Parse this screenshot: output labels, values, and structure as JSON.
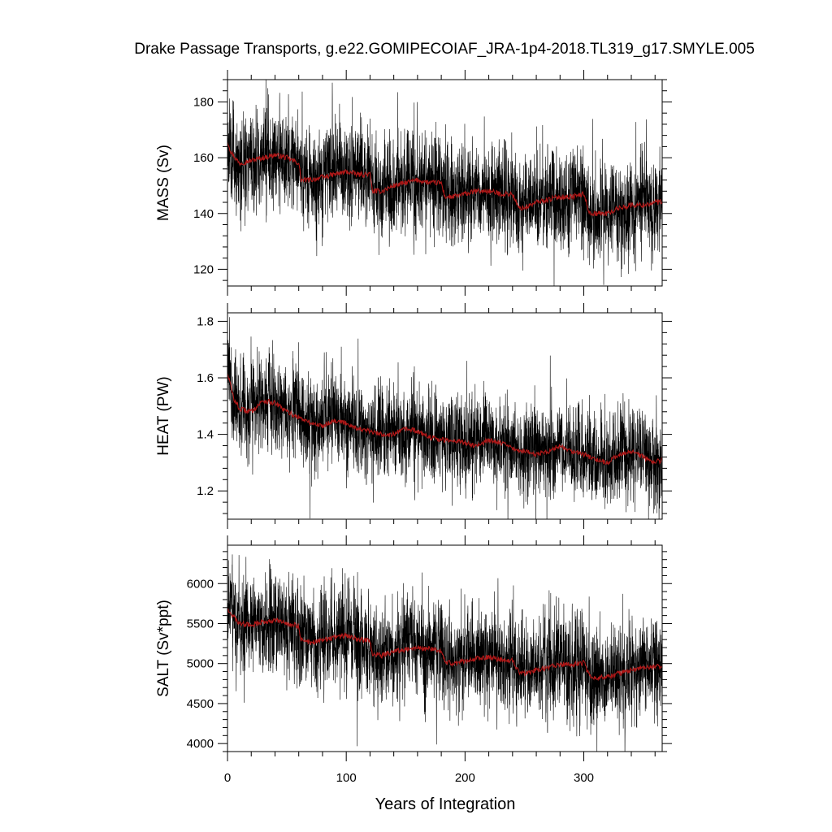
{
  "title": "Drake Passage Transports, g.e22.GOMIPECOIAF_JRA-1p4-2018.TL319_g17.SMYLE.005",
  "xlabel": "Years of Integration",
  "colors": {
    "raw": "#000000",
    "smooth": "#b01818"
  },
  "chart_data": [
    {
      "type": "line",
      "ylabel": "MASS (Sv)",
      "xlim": [
        0,
        366
      ],
      "ylim": [
        114,
        188
      ],
      "yticks": [
        120,
        140,
        160,
        180
      ],
      "ytick_labels": [
        "120",
        "140",
        "160",
        "180"
      ],
      "xticks": [
        0,
        100,
        200,
        300
      ],
      "xtick_labels": [
        "0",
        "100",
        "200",
        "300"
      ],
      "show_xtick_labels": false,
      "series": [
        {
          "role": "monthly",
          "noise": 8,
          "seed": 11,
          "x": [
            0,
            3,
            10,
            20,
            30,
            40,
            50,
            60,
            62,
            70,
            80,
            90,
            100,
            110,
            120,
            122,
            130,
            140,
            150,
            160,
            170,
            180,
            183,
            190,
            200,
            210,
            220,
            230,
            240,
            245,
            250,
            260,
            270,
            280,
            290,
            300,
            305,
            310,
            320,
            330,
            340,
            350,
            360,
            366
          ],
          "y": [
            166,
            162,
            158,
            159,
            160,
            161,
            160,
            158,
            152,
            152,
            153,
            154,
            155,
            154,
            154,
            148,
            148,
            150,
            151,
            152,
            151,
            151,
            146,
            146,
            147,
            148,
            148,
            147,
            147,
            142,
            142,
            144,
            145,
            146,
            146,
            147,
            140,
            140,
            140,
            142,
            143,
            143,
            144,
            144
          ]
        },
        {
          "role": "annual-mean",
          "x": [
            0,
            3,
            10,
            20,
            30,
            40,
            50,
            60,
            62,
            70,
            80,
            90,
            100,
            110,
            120,
            122,
            130,
            140,
            150,
            160,
            170,
            180,
            183,
            190,
            200,
            210,
            220,
            230,
            240,
            245,
            250,
            260,
            270,
            280,
            290,
            300,
            305,
            310,
            320,
            330,
            340,
            350,
            360,
            366
          ],
          "y": [
            166,
            162,
            158,
            159,
            160,
            161,
            160,
            158,
            152,
            152,
            153,
            154,
            155,
            154,
            154,
            148,
            148,
            150,
            151,
            152,
            151,
            151,
            146,
            146,
            147,
            148,
            148,
            147,
            147,
            142,
            142,
            144,
            145,
            146,
            146,
            147,
            140,
            140,
            140,
            142,
            143,
            143,
            144,
            144
          ]
        }
      ]
    },
    {
      "type": "line",
      "ylabel": "HEAT (PW)",
      "xlim": [
        0,
        366
      ],
      "ylim": [
        1.1,
        1.83
      ],
      "yticks": [
        1.2,
        1.4,
        1.6,
        1.8
      ],
      "ytick_labels": [
        "1.2",
        "1.4",
        "1.6",
        "1.8"
      ],
      "xticks": [
        0,
        100,
        200,
        300
      ],
      "xtick_labels": [
        "0",
        "100",
        "200",
        "300"
      ],
      "show_xtick_labels": false,
      "series": [
        {
          "role": "monthly",
          "noise": 0.075,
          "seed": 23,
          "x": [
            0,
            5,
            10,
            20,
            30,
            40,
            50,
            60,
            70,
            80,
            90,
            100,
            110,
            120,
            130,
            140,
            150,
            160,
            170,
            180,
            190,
            200,
            210,
            220,
            230,
            240,
            250,
            260,
            270,
            280,
            290,
            300,
            310,
            320,
            330,
            340,
            350,
            360,
            366
          ],
          "y": [
            1.62,
            1.53,
            1.49,
            1.48,
            1.52,
            1.51,
            1.48,
            1.46,
            1.44,
            1.43,
            1.45,
            1.44,
            1.42,
            1.41,
            1.4,
            1.4,
            1.42,
            1.41,
            1.39,
            1.38,
            1.38,
            1.37,
            1.36,
            1.38,
            1.37,
            1.35,
            1.34,
            1.33,
            1.34,
            1.36,
            1.34,
            1.33,
            1.31,
            1.3,
            1.33,
            1.34,
            1.32,
            1.3,
            1.31
          ]
        },
        {
          "role": "annual-mean",
          "x": [
            0,
            5,
            10,
            20,
            30,
            40,
            50,
            60,
            70,
            80,
            90,
            100,
            110,
            120,
            130,
            140,
            150,
            160,
            170,
            180,
            190,
            200,
            210,
            220,
            230,
            240,
            250,
            260,
            270,
            280,
            290,
            300,
            310,
            320,
            330,
            340,
            350,
            360,
            366
          ],
          "y": [
            1.62,
            1.53,
            1.49,
            1.48,
            1.52,
            1.51,
            1.48,
            1.46,
            1.44,
            1.43,
            1.45,
            1.44,
            1.42,
            1.41,
            1.4,
            1.4,
            1.42,
            1.41,
            1.39,
            1.38,
            1.38,
            1.37,
            1.36,
            1.38,
            1.37,
            1.35,
            1.34,
            1.33,
            1.34,
            1.36,
            1.34,
            1.33,
            1.31,
            1.3,
            1.33,
            1.34,
            1.32,
            1.3,
            1.31
          ]
        }
      ]
    },
    {
      "type": "line",
      "ylabel": "SALT (Sv*ppt)",
      "xlim": [
        0,
        366
      ],
      "ylim": [
        3900,
        6480
      ],
      "yticks": [
        4000,
        4500,
        5000,
        5500,
        6000
      ],
      "ytick_labels": [
        "4000",
        "4500",
        "5000",
        "5500",
        "6000"
      ],
      "xticks": [
        0,
        100,
        200,
        300
      ],
      "xtick_labels": [
        "0",
        "100",
        "200",
        "300"
      ],
      "show_xtick_labels": true,
      "series": [
        {
          "role": "monthly",
          "noise": 280,
          "seed": 37,
          "x": [
            0,
            3,
            10,
            20,
            30,
            40,
            50,
            60,
            62,
            70,
            80,
            90,
            100,
            110,
            120,
            122,
            130,
            140,
            150,
            160,
            170,
            180,
            183,
            190,
            200,
            210,
            220,
            230,
            240,
            245,
            250,
            260,
            270,
            280,
            290,
            300,
            305,
            310,
            320,
            330,
            340,
            350,
            360,
            366
          ],
          "y": [
            5700,
            5620,
            5500,
            5480,
            5520,
            5540,
            5500,
            5470,
            5300,
            5260,
            5290,
            5330,
            5350,
            5300,
            5290,
            5120,
            5100,
            5150,
            5180,
            5200,
            5180,
            5170,
            5020,
            5000,
            5030,
            5060,
            5080,
            5050,
            5040,
            4900,
            4880,
            4920,
            4950,
            4990,
            4990,
            5010,
            4840,
            4820,
            4830,
            4880,
            4920,
            4940,
            4960,
            4960
          ]
        },
        {
          "role": "annual-mean",
          "x": [
            0,
            3,
            10,
            20,
            30,
            40,
            50,
            60,
            62,
            70,
            80,
            90,
            100,
            110,
            120,
            122,
            130,
            140,
            150,
            160,
            170,
            180,
            183,
            190,
            200,
            210,
            220,
            230,
            240,
            245,
            250,
            260,
            270,
            280,
            290,
            300,
            305,
            310,
            320,
            330,
            340,
            350,
            360,
            366
          ],
          "y": [
            5700,
            5620,
            5500,
            5480,
            5520,
            5540,
            5500,
            5470,
            5300,
            5260,
            5290,
            5330,
            5350,
            5300,
            5290,
            5120,
            5100,
            5150,
            5180,
            5200,
            5180,
            5170,
            5020,
            5000,
            5030,
            5060,
            5080,
            5050,
            5040,
            4900,
            4880,
            4920,
            4950,
            4990,
            4990,
            5010,
            4840,
            4820,
            4830,
            4880,
            4920,
            4940,
            4960,
            4960
          ]
        }
      ]
    }
  ]
}
